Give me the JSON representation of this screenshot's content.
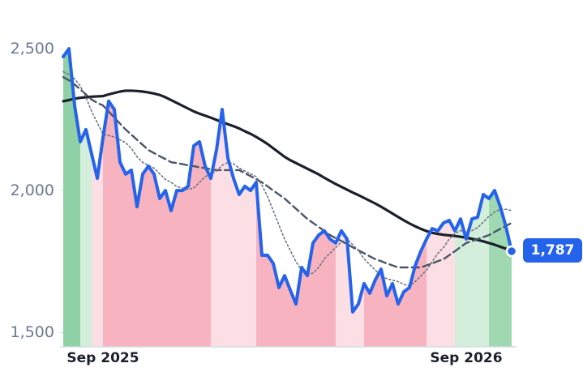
{
  "chart_data": {
    "type": "line",
    "categories": [
      null,
      null,
      null,
      null,
      null,
      null,
      null,
      "Sep 2025",
      null,
      null,
      null,
      null,
      null,
      null,
      null,
      null,
      null,
      null,
      null,
      null,
      null,
      null,
      null,
      null,
      null,
      null,
      null,
      null,
      null,
      null,
      null,
      null,
      null,
      null,
      null,
      null,
      null,
      null,
      null,
      null,
      null,
      null,
      null,
      null,
      null,
      null,
      null,
      null,
      null,
      null,
      null,
      null,
      null,
      null,
      null,
      null,
      null,
      null,
      null,
      null,
      null,
      null,
      null,
      null,
      null,
      null,
      null,
      null,
      null,
      null,
      null,
      "Sep 2026",
      null,
      null,
      null,
      null,
      null,
      null,
      null,
      null
    ],
    "ylim": [
      1450,
      2530
    ],
    "yticks": [
      {
        "value": 1500,
        "label": "1,500"
      },
      {
        "value": 2000,
        "label": "2,000"
      },
      {
        "value": 2500,
        "label": "2,500"
      }
    ],
    "series": [
      {
        "color": "#2563eb",
        "style": "price",
        "last_value_label": "1,787",
        "values": [
          2473,
          2501,
          2301,
          2173,
          2216,
          2130,
          2044,
          2187,
          2316,
          2287,
          2101,
          2059,
          2073,
          1944,
          2059,
          2087,
          2059,
          1973,
          2001,
          1930,
          2001,
          2001,
          2016,
          2159,
          2173,
          2087,
          2044,
          2144,
          2287,
          2116,
          2044,
          1987,
          2016,
          2001,
          2030,
          1773,
          1773,
          1744,
          1659,
          1701,
          1650,
          1601,
          1730,
          1701,
          1816,
          1844,
          1859,
          1830,
          1816,
          1859,
          1830,
          1573,
          1601,
          1673,
          1639,
          1687,
          1724,
          1630,
          1673,
          1601,
          1644,
          1659,
          1736,
          1787,
          1830,
          1867,
          1859,
          1887,
          1896,
          1859,
          1901,
          1830,
          1901,
          1907,
          1987,
          1973,
          2001,
          1944,
          1873,
          1787
        ]
      },
      {
        "color": "#6b7585",
        "style": "dotted",
        "values": [
          2420,
          2410,
          2395,
          2370,
          2330,
          2280,
          2240,
          2200,
          2195,
          2190,
          2180,
          2170,
          2150,
          2120,
          2100,
          2090,
          2080,
          2060,
          2040,
          2030,
          2015,
          2010,
          2005,
          2010,
          2030,
          2050,
          2060,
          2070,
          2090,
          2100,
          2095,
          2080,
          2070,
          2060,
          2050,
          2020,
          1980,
          1930,
          1880,
          1830,
          1790,
          1750,
          1720,
          1705,
          1710,
          1730,
          1760,
          1780,
          1800,
          1820,
          1830,
          1810,
          1790,
          1760,
          1740,
          1720,
          1700,
          1690,
          1685,
          1680,
          1670,
          1665,
          1680,
          1700,
          1720,
          1750,
          1780,
          1800,
          1830,
          1850,
          1860,
          1855,
          1860,
          1870,
          1890,
          1910,
          1925,
          1935,
          1935,
          1930
        ]
      },
      {
        "color": "#4a5568",
        "style": "dashed",
        "values": [
          2401,
          2390,
          2375,
          2358,
          2340,
          2322,
          2310,
          2301,
          2280,
          2258,
          2237,
          2216,
          2198,
          2180,
          2162,
          2144,
          2133,
          2122,
          2112,
          2101,
          2098,
          2094,
          2090,
          2087,
          2083,
          2080,
          2076,
          2073,
          2073,
          2073,
          2073,
          2073,
          2062,
          2052,
          2041,
          2030,
          2016,
          2001,
          1987,
          1973,
          1955,
          1937,
          1919,
          1901,
          1887,
          1873,
          1858,
          1844,
          1833,
          1823,
          1812,
          1801,
          1790,
          1780,
          1769,
          1759,
          1752,
          1744,
          1737,
          1730,
          1730,
          1730,
          1730,
          1730,
          1737,
          1744,
          1752,
          1759,
          1773,
          1787,
          1802,
          1816,
          1823,
          1830,
          1837,
          1844,
          1855,
          1866,
          1876,
          1887
        ]
      },
      {
        "color": "#1a1f2b",
        "style": "solid",
        "values": [
          2316,
          2320,
          2325,
          2328,
          2330,
          2332,
          2333,
          2334,
          2340,
          2345,
          2350,
          2353,
          2353,
          2352,
          2350,
          2347,
          2343,
          2338,
          2330,
          2320,
          2310,
          2300,
          2290,
          2280,
          2272,
          2265,
          2258,
          2250,
          2242,
          2235,
          2228,
          2220,
          2210,
          2201,
          2190,
          2178,
          2165,
          2150,
          2135,
          2120,
          2108,
          2098,
          2088,
          2078,
          2068,
          2058,
          2046,
          2035,
          2024,
          2014,
          2004,
          1994,
          1985,
          1975,
          1965,
          1955,
          1944,
          1932,
          1920,
          1908,
          1896,
          1885,
          1875,
          1866,
          1858,
          1852,
          1848,
          1845,
          1843,
          1841,
          1838,
          1835,
          1831,
          1827,
          1822,
          1816,
          1810,
          1803,
          1796,
          1787
        ]
      }
    ],
    "bands": [
      {
        "from": 0,
        "to": 3,
        "color": "#8fd0a4"
      },
      {
        "from": 3,
        "to": 5,
        "color": "#d3eedb"
      },
      {
        "from": 5,
        "to": 7,
        "color": "#fcdfe4"
      },
      {
        "from": 7,
        "to": 26,
        "color": "#f7b3c0"
      },
      {
        "from": 26,
        "to": 34,
        "color": "#fcdfe4"
      },
      {
        "from": 34,
        "to": 48,
        "color": "#f7b3c0"
      },
      {
        "from": 48,
        "to": 53,
        "color": "#fcdfe4"
      },
      {
        "from": 53,
        "to": 64,
        "color": "#f7b3c0"
      },
      {
        "from": 64,
        "to": 69,
        "color": "#fcdfe4"
      },
      {
        "from": 69,
        "to": 75,
        "color": "#d3eedb"
      },
      {
        "from": 75,
        "to": 79,
        "color": "#9fd8b1"
      }
    ]
  }
}
